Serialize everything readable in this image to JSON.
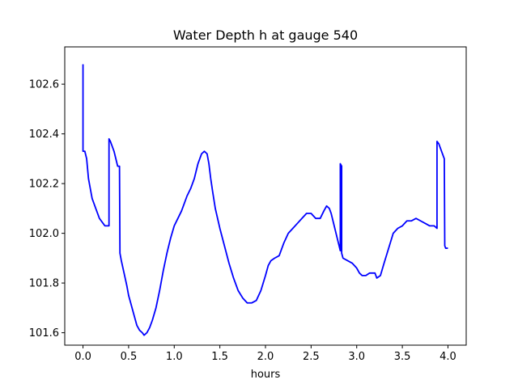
{
  "chart_data": {
    "type": "line",
    "title": "Water Depth h at gauge 540",
    "xlabel": "hours",
    "ylabel": "",
    "xlim": [
      -0.2,
      4.2
    ],
    "ylim": [
      101.55,
      102.75
    ],
    "x_ticks": [
      0.0,
      0.5,
      1.0,
      1.5,
      2.0,
      2.5,
      3.0,
      3.5,
      4.0
    ],
    "x_tick_labels": [
      "0.0",
      "0.5",
      "1.0",
      "1.5",
      "2.0",
      "2.5",
      "3.0",
      "3.5",
      "4.0"
    ],
    "y_ticks": [
      101.6,
      101.8,
      102.0,
      102.2,
      102.4,
      102.6
    ],
    "y_tick_labels": [
      "101.6",
      "101.8",
      "102.0",
      "102.2",
      "102.4",
      "102.6"
    ],
    "grid": false,
    "legend": "none",
    "series": [
      {
        "color": "#0000ff",
        "x": [
          0.0,
          0.0,
          0.0,
          0.02,
          0.04,
          0.06,
          0.08,
          0.1,
          0.12,
          0.14,
          0.16,
          0.18,
          0.2,
          0.22,
          0.24,
          0.26,
          0.285,
          0.285,
          0.3,
          0.32,
          0.34,
          0.36,
          0.38,
          0.4,
          0.405,
          0.42,
          0.45,
          0.48,
          0.5,
          0.53,
          0.56,
          0.59,
          0.62,
          0.65,
          0.67,
          0.7,
          0.73,
          0.76,
          0.8,
          0.84,
          0.88,
          0.92,
          0.96,
          1.0,
          1.04,
          1.08,
          1.1,
          1.14,
          1.18,
          1.22,
          1.26,
          1.3,
          1.33,
          1.36,
          1.38,
          1.4,
          1.42,
          1.45,
          1.5,
          1.55,
          1.6,
          1.65,
          1.7,
          1.75,
          1.8,
          1.85,
          1.9,
          1.95,
          2.0,
          2.03,
          2.06,
          2.1,
          2.15,
          2.2,
          2.25,
          2.3,
          2.35,
          2.4,
          2.45,
          2.5,
          2.55,
          2.6,
          2.64,
          2.67,
          2.7,
          2.72,
          2.76,
          2.8,
          2.82,
          2.82,
          2.835,
          2.835,
          2.85,
          2.9,
          2.95,
          3.0,
          3.03,
          3.06,
          3.1,
          3.14,
          3.18,
          3.2,
          3.22,
          3.26,
          3.3,
          3.35,
          3.4,
          3.45,
          3.5,
          3.55,
          3.6,
          3.65,
          3.7,
          3.75,
          3.8,
          3.85,
          3.88,
          3.88,
          3.9,
          3.93,
          3.96,
          3.965,
          3.975,
          4.0
        ],
        "y": [
          102.68,
          102.68,
          102.33,
          102.33,
          102.3,
          102.22,
          102.18,
          102.14,
          102.12,
          102.1,
          102.08,
          102.06,
          102.05,
          102.04,
          102.03,
          102.03,
          102.03,
          102.38,
          102.37,
          102.35,
          102.33,
          102.3,
          102.27,
          102.27,
          101.92,
          101.89,
          101.84,
          101.79,
          101.75,
          101.71,
          101.67,
          101.63,
          101.61,
          101.6,
          101.59,
          101.6,
          101.62,
          101.65,
          101.7,
          101.77,
          101.85,
          101.92,
          101.98,
          102.03,
          102.06,
          102.09,
          102.11,
          102.15,
          102.18,
          102.22,
          102.28,
          102.32,
          102.33,
          102.32,
          102.28,
          102.22,
          102.17,
          102.1,
          102.02,
          101.95,
          101.88,
          101.82,
          101.77,
          101.74,
          101.72,
          101.72,
          101.73,
          101.77,
          101.83,
          101.87,
          101.89,
          101.9,
          101.91,
          101.96,
          102.0,
          102.02,
          102.04,
          102.06,
          102.08,
          102.08,
          102.06,
          102.06,
          102.09,
          102.11,
          102.1,
          102.08,
          102.02,
          101.96,
          101.93,
          102.28,
          102.27,
          101.92,
          101.9,
          101.89,
          101.88,
          101.86,
          101.84,
          101.83,
          101.83,
          101.84,
          101.84,
          101.84,
          101.82,
          101.83,
          101.88,
          101.94,
          102.0,
          102.02,
          102.03,
          102.05,
          102.05,
          102.06,
          102.05,
          102.04,
          102.03,
          102.03,
          102.02,
          102.37,
          102.36,
          102.33,
          102.3,
          101.95,
          101.94,
          101.94
        ]
      }
    ]
  }
}
